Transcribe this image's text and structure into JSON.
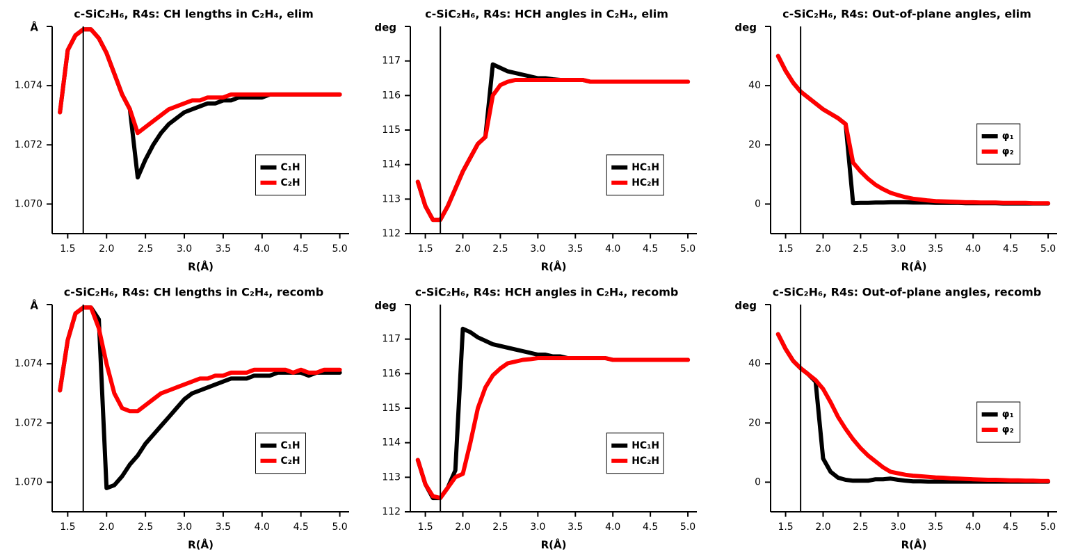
{
  "chart_data": [
    {
      "type": "line",
      "title": "c-SiC₂H₆, R4s: CH lengths in C₂H₄, elim",
      "xlabel": "R(Å)",
      "ylabel": "Å",
      "x": [
        1.4,
        1.5,
        1.6,
        1.7,
        1.8,
        1.9,
        2.0,
        2.1,
        2.2,
        2.3,
        2.4,
        2.5,
        2.6,
        2.7,
        2.8,
        2.9,
        3.0,
        3.1,
        3.2,
        3.3,
        3.4,
        3.5,
        3.6,
        3.7,
        3.8,
        3.9,
        4.0,
        4.1,
        4.2,
        4.3,
        4.4,
        4.5,
        4.6,
        4.7,
        4.8,
        4.9,
        5.0
      ],
      "series": [
        {
          "name": "C₁H",
          "color": "#000000",
          "values": [
            1.0731,
            1.0752,
            1.0757,
            1.0759,
            1.0759,
            1.0756,
            1.0751,
            1.0744,
            1.0737,
            1.0732,
            1.0709,
            1.0715,
            1.072,
            1.0724,
            1.0727,
            1.0729,
            1.0731,
            1.0732,
            1.0733,
            1.0734,
            1.0734,
            1.0735,
            1.0735,
            1.0736,
            1.0736,
            1.0736,
            1.0736,
            1.0737,
            1.0737,
            1.0737,
            1.0737,
            1.0737,
            1.0737,
            1.0737,
            1.0737,
            1.0737,
            1.0737
          ]
        },
        {
          "name": "C₂H",
          "color": "#ff0000",
          "values": [
            1.0731,
            1.0752,
            1.0757,
            1.0759,
            1.0759,
            1.0756,
            1.0751,
            1.0744,
            1.0737,
            1.0732,
            1.0724,
            1.0726,
            1.0728,
            1.073,
            1.0732,
            1.0733,
            1.0734,
            1.0735,
            1.0735,
            1.0736,
            1.0736,
            1.0736,
            1.0737,
            1.0737,
            1.0737,
            1.0737,
            1.0737,
            1.0737,
            1.0737,
            1.0737,
            1.0737,
            1.0737,
            1.0737,
            1.0737,
            1.0737,
            1.0737,
            1.0737
          ]
        }
      ],
      "xlim": [
        1.3,
        5.12
      ],
      "xticks": [
        1.5,
        {
          "value": 2,
          "label": "2.0"
        },
        2.5,
        {
          "value": 3,
          "label": "3.0"
        },
        3.5,
        {
          "value": 4,
          "label": "4.0"
        },
        4.5,
        {
          "value": 5,
          "label": "5.0"
        }
      ],
      "ylim": [
        1.069,
        1.076
      ],
      "yticks": [
        {
          "value": 1.07,
          "label": "1.070"
        },
        {
          "value": 1.072,
          "label": "1.072"
        },
        {
          "value": 1.074,
          "label": "1.074"
        }
      ],
      "vline": 1.7,
      "vline_color": "#000000",
      "legend": "lower right"
    },
    {
      "type": "line",
      "title": "c-SiC₂H₆, R4s: HCH angles in C₂H₄, elim",
      "xlabel": "R(Å)",
      "ylabel": "deg",
      "x": [
        1.4,
        1.5,
        1.6,
        1.7,
        1.8,
        1.9,
        2.0,
        2.1,
        2.2,
        2.3,
        2.4,
        2.5,
        2.6,
        2.7,
        2.8,
        2.9,
        3.0,
        3.1,
        3.2,
        3.3,
        3.4,
        3.5,
        3.6,
        3.7,
        3.8,
        3.9,
        4.0,
        4.1,
        4.2,
        4.3,
        4.4,
        4.5,
        4.6,
        4.7,
        4.8,
        4.9,
        5.0
      ],
      "series": [
        {
          "name": "HC₁H",
          "color": "#000000",
          "values": [
            113.5,
            112.8,
            112.4,
            112.4,
            112.8,
            113.3,
            113.8,
            114.2,
            114.6,
            114.8,
            116.9,
            116.8,
            116.7,
            116.65,
            116.6,
            116.55,
            116.5,
            116.5,
            116.47,
            116.45,
            116.45,
            116.45,
            116.45,
            116.4,
            116.4,
            116.4,
            116.4,
            116.4,
            116.4,
            116.4,
            116.4,
            116.4,
            116.4,
            116.4,
            116.4,
            116.4,
            116.4
          ]
        },
        {
          "name": "HC₂H",
          "color": "#ff0000",
          "values": [
            113.5,
            112.8,
            112.4,
            112.4,
            112.8,
            113.3,
            113.8,
            114.2,
            114.6,
            114.8,
            116.0,
            116.3,
            116.4,
            116.45,
            116.45,
            116.45,
            116.45,
            116.45,
            116.45,
            116.45,
            116.45,
            116.45,
            116.45,
            116.4,
            116.4,
            116.4,
            116.4,
            116.4,
            116.4,
            116.4,
            116.4,
            116.4,
            116.4,
            116.4,
            116.4,
            116.4,
            116.4
          ]
        }
      ],
      "xlim": [
        1.3,
        5.12
      ],
      "xticks": [
        1.5,
        {
          "value": 2,
          "label": "2.0"
        },
        2.5,
        {
          "value": 3,
          "label": "3.0"
        },
        3.5,
        {
          "value": 4,
          "label": "4.0"
        },
        4.5,
        {
          "value": 5,
          "label": "5.0"
        }
      ],
      "ylim": [
        112,
        118
      ],
      "yticks": [
        112,
        113,
        114,
        115,
        116,
        117
      ],
      "vline": 1.7,
      "vline_color": "#000000",
      "legend": "lower right"
    },
    {
      "type": "line",
      "title": "c-SiC₂H₆, R4s: Out-of-plane angles, elim",
      "xlabel": "R(Å)",
      "ylabel": "deg",
      "x": [
        1.4,
        1.5,
        1.6,
        1.7,
        1.8,
        1.9,
        2.0,
        2.1,
        2.2,
        2.3,
        2.4,
        2.5,
        2.6,
        2.7,
        2.8,
        2.9,
        3.0,
        3.1,
        3.2,
        3.3,
        3.4,
        3.5,
        3.6,
        3.7,
        3.8,
        3.9,
        4.0,
        4.1,
        4.2,
        4.3,
        4.4,
        4.5,
        4.6,
        4.7,
        4.8,
        4.9,
        5.0
      ],
      "series": [
        {
          "name": "φ₁",
          "color": "#000000",
          "values": [
            50,
            45,
            41,
            38,
            36,
            34,
            32,
            30.5,
            29,
            27,
            0.3,
            0.4,
            0.4,
            0.5,
            0.5,
            0.6,
            0.6,
            0.6,
            0.5,
            0.5,
            0.5,
            0.4,
            0.4,
            0.4,
            0.4,
            0.3,
            0.3,
            0.3,
            0.3,
            0.3,
            0.2,
            0.2,
            0.2,
            0.2,
            0.2,
            0.2,
            0.2
          ]
        },
        {
          "name": "φ₂",
          "color": "#ff0000",
          "values": [
            50,
            45,
            41,
            38,
            36,
            34,
            32,
            30.5,
            29,
            27,
            14,
            11,
            8.5,
            6.5,
            5,
            3.8,
            3,
            2.3,
            1.8,
            1.5,
            1.2,
            1.0,
            0.9,
            0.8,
            0.7,
            0.6,
            0.6,
            0.5,
            0.5,
            0.5,
            0.4,
            0.4,
            0.4,
            0.4,
            0.3,
            0.3,
            0.3
          ]
        }
      ],
      "xlim": [
        1.3,
        5.12
      ],
      "xticks": [
        1.5,
        {
          "value": 2,
          "label": "2.0"
        },
        2.5,
        {
          "value": 3,
          "label": "3.0"
        },
        3.5,
        {
          "value": 4,
          "label": "4.0"
        },
        4.5,
        {
          "value": 5,
          "label": "5.0"
        }
      ],
      "ylim": [
        -10,
        60
      ],
      "yticks": [
        0,
        20,
        40
      ],
      "vline": 1.7,
      "vline_color": "#000000",
      "legend": "center right"
    },
    {
      "type": "line",
      "title": "c-SiC₂H₆, R4s: CH lengths in C₂H₄, recomb",
      "xlabel": "R(Å)",
      "ylabel": "Å",
      "x": [
        1.4,
        1.5,
        1.6,
        1.7,
        1.8,
        1.9,
        2.0,
        2.1,
        2.2,
        2.3,
        2.4,
        2.5,
        2.6,
        2.7,
        2.8,
        2.9,
        3.0,
        3.1,
        3.2,
        3.3,
        3.4,
        3.5,
        3.6,
        3.7,
        3.8,
        3.9,
        4.0,
        4.1,
        4.2,
        4.3,
        4.4,
        4.5,
        4.6,
        4.7,
        4.8,
        4.9,
        5.0
      ],
      "series": [
        {
          "name": "C₁H",
          "color": "#000000",
          "values": [
            1.0731,
            1.0748,
            1.0757,
            1.0759,
            1.0759,
            1.0755,
            1.0698,
            1.0699,
            1.0702,
            1.0706,
            1.0709,
            1.0713,
            1.0716,
            1.0719,
            1.0722,
            1.0725,
            1.0728,
            1.073,
            1.0731,
            1.0732,
            1.0733,
            1.0734,
            1.0735,
            1.0735,
            1.0735,
            1.0736,
            1.0736,
            1.0736,
            1.0737,
            1.0737,
            1.0737,
            1.0737,
            1.0736,
            1.0737,
            1.0737,
            1.0737,
            1.0737
          ]
        },
        {
          "name": "C₂H",
          "color": "#ff0000",
          "values": [
            1.0731,
            1.0748,
            1.0757,
            1.0759,
            1.0759,
            1.0752,
            1.074,
            1.073,
            1.0725,
            1.0724,
            1.0724,
            1.0726,
            1.0728,
            1.073,
            1.0731,
            1.0732,
            1.0733,
            1.0734,
            1.0735,
            1.0735,
            1.0736,
            1.0736,
            1.0737,
            1.0737,
            1.0737,
            1.0738,
            1.0738,
            1.0738,
            1.0738,
            1.0738,
            1.0737,
            1.0738,
            1.0737,
            1.0737,
            1.0738,
            1.0738,
            1.0738
          ]
        }
      ],
      "xlim": [
        1.3,
        5.12
      ],
      "xticks": [
        1.5,
        {
          "value": 2,
          "label": "2.0"
        },
        2.5,
        {
          "value": 3,
          "label": "3.0"
        },
        3.5,
        {
          "value": 4,
          "label": "4.0"
        },
        4.5,
        {
          "value": 5,
          "label": "5.0"
        }
      ],
      "ylim": [
        1.069,
        1.076
      ],
      "yticks": [
        {
          "value": 1.07,
          "label": "1.070"
        },
        {
          "value": 1.072,
          "label": "1.072"
        },
        {
          "value": 1.074,
          "label": "1.074"
        }
      ],
      "vline": 1.7,
      "vline_color": "#000000",
      "legend": "lower right"
    },
    {
      "type": "line",
      "title": "c-SiC₂H₆, R4s: HCH angles in C₂H₄, recomb",
      "xlabel": "R(Å)",
      "ylabel": "deg",
      "x": [
        1.4,
        1.5,
        1.6,
        1.7,
        1.8,
        1.9,
        2.0,
        2.1,
        2.2,
        2.3,
        2.4,
        2.5,
        2.6,
        2.7,
        2.8,
        2.9,
        3.0,
        3.1,
        3.2,
        3.3,
        3.4,
        3.5,
        3.6,
        3.7,
        3.8,
        3.9,
        4.0,
        4.1,
        4.2,
        4.3,
        4.4,
        4.5,
        4.6,
        4.7,
        4.8,
        4.9,
        5.0
      ],
      "series": [
        {
          "name": "HC₁H",
          "color": "#000000",
          "values": [
            113.5,
            112.8,
            112.4,
            112.4,
            112.7,
            113.2,
            117.3,
            117.2,
            117.05,
            116.95,
            116.85,
            116.8,
            116.75,
            116.7,
            116.65,
            116.6,
            116.55,
            116.55,
            116.5,
            116.5,
            116.45,
            116.45,
            116.45,
            116.45,
            116.45,
            116.45,
            116.4,
            116.4,
            116.4,
            116.4,
            116.4,
            116.4,
            116.4,
            116.4,
            116.4,
            116.4,
            116.4
          ]
        },
        {
          "name": "HC₂H",
          "color": "#ff0000",
          "values": [
            113.5,
            112.8,
            112.45,
            112.4,
            112.7,
            113.0,
            113.1,
            114.0,
            115.0,
            115.6,
            115.95,
            116.15,
            116.3,
            116.35,
            116.4,
            116.42,
            116.45,
            116.45,
            116.45,
            116.45,
            116.45,
            116.45,
            116.45,
            116.45,
            116.45,
            116.45,
            116.4,
            116.4,
            116.4,
            116.4,
            116.4,
            116.4,
            116.4,
            116.4,
            116.4,
            116.4,
            116.4
          ]
        }
      ],
      "xlim": [
        1.3,
        5.12
      ],
      "xticks": [
        1.5,
        {
          "value": 2,
          "label": "2.0"
        },
        2.5,
        {
          "value": 3,
          "label": "3.0"
        },
        3.5,
        {
          "value": 4,
          "label": "4.0"
        },
        4.5,
        {
          "value": 5,
          "label": "5.0"
        }
      ],
      "ylim": [
        112,
        118
      ],
      "yticks": [
        112,
        113,
        114,
        115,
        116,
        117
      ],
      "vline": 1.7,
      "vline_color": "#000000",
      "legend": "lower right"
    },
    {
      "type": "line",
      "title": "c-SiC₂H₆, R4s: Out-of-plane angles, recomb",
      "xlabel": "R(Å)",
      "ylabel": "deg",
      "x": [
        1.4,
        1.5,
        1.6,
        1.7,
        1.8,
        1.9,
        2.0,
        2.1,
        2.2,
        2.3,
        2.4,
        2.5,
        2.6,
        2.7,
        2.8,
        2.9,
        3.0,
        3.1,
        3.2,
        3.3,
        3.4,
        3.5,
        3.6,
        3.7,
        3.8,
        3.9,
        4.0,
        4.1,
        4.2,
        4.3,
        4.4,
        4.5,
        4.6,
        4.7,
        4.8,
        4.9,
        5.0
      ],
      "series": [
        {
          "name": "φ₁",
          "color": "#000000",
          "values": [
            50,
            45,
            41,
            38.5,
            36.5,
            34,
            8,
            3.5,
            1.5,
            0.8,
            0.5,
            0.5,
            0.5,
            1,
            1,
            1.2,
            0.8,
            0.5,
            0.3,
            0.3,
            0.2,
            0.2,
            0.2,
            0.2,
            0.2,
            0.2,
            0.2,
            0.2,
            0.2,
            0.2,
            0.2,
            0.2,
            0.2,
            0.2,
            0.2,
            0.2,
            0.2
          ]
        },
        {
          "name": "φ₂",
          "color": "#ff0000",
          "values": [
            50,
            45,
            41,
            38.5,
            36.5,
            34.5,
            31.5,
            27,
            22,
            18,
            14.5,
            11.5,
            9,
            7,
            5,
            3.5,
            3,
            2.5,
            2.2,
            2,
            1.8,
            1.6,
            1.5,
            1.3,
            1.2,
            1.1,
            1.0,
            0.9,
            0.8,
            0.8,
            0.7,
            0.6,
            0.6,
            0.5,
            0.5,
            0.4,
            0.4
          ]
        }
      ],
      "xlim": [
        1.3,
        5.12
      ],
      "xticks": [
        1.5,
        {
          "value": 2,
          "label": "2.0"
        },
        2.5,
        {
          "value": 3,
          "label": "3.0"
        },
        3.5,
        {
          "value": 4,
          "label": "4.0"
        },
        4.5,
        {
          "value": 5,
          "label": "5.0"
        }
      ],
      "ylim": [
        -10,
        60
      ],
      "yticks": [
        0,
        20,
        40
      ],
      "vline": 1.7,
      "vline_color": "#000000",
      "legend": "center right"
    }
  ]
}
